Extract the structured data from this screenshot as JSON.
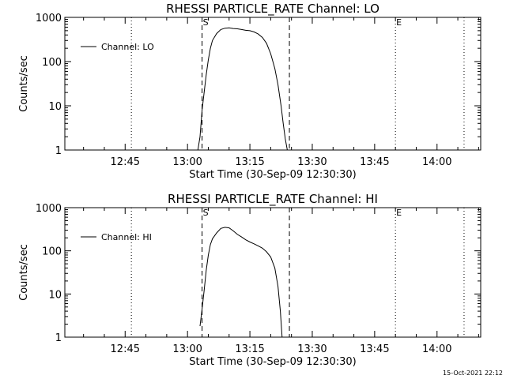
{
  "footer_timestamp": "15-Oct-2021 22:12",
  "chart_data": [
    {
      "type": "line",
      "title": "RHESSI PARTICLE_RATE Channel: LO",
      "xlabel": "Start Time (30-Sep-09 12:30:30)",
      "ylabel": "Counts/sec",
      "y_scale": "log",
      "ylim": [
        1,
        1000
      ],
      "y_ticks": [
        1,
        10,
        100,
        1000
      ],
      "y_tick_labels": [
        "1",
        "10",
        "100",
        "1000"
      ],
      "xlim": [
        "12:30:30",
        "14:10:30"
      ],
      "x_ticks": [
        "12:45",
        "13:00",
        "13:15",
        "13:30",
        "13:45",
        "14:00"
      ],
      "grid": false,
      "legend": "top-left",
      "series": [
        {
          "name": "Channel: LO",
          "points": [
            [
              "13:02:30",
              1.0
            ],
            [
              "13:03:00",
              2.0
            ],
            [
              "13:03:30",
              8.0
            ],
            [
              "13:04:00",
              20.0
            ],
            [
              "13:04:30",
              50.0
            ],
            [
              "13:05:00",
              110.0
            ],
            [
              "13:05:30",
              200.0
            ],
            [
              "13:06:00",
              300.0
            ],
            [
              "13:07:00",
              430.0
            ],
            [
              "13:08:00",
              530.0
            ],
            [
              "13:09:00",
              570.0
            ],
            [
              "13:10:00",
              580.0
            ],
            [
              "13:11:00",
              560.0
            ],
            [
              "13:12:00",
              550.0
            ],
            [
              "13:13:00",
              530.0
            ],
            [
              "13:14:00",
              510.0
            ],
            [
              "13:15:00",
              500.0
            ],
            [
              "13:16:00",
              470.0
            ],
            [
              "13:17:00",
              420.0
            ],
            [
              "13:18:00",
              350.0
            ],
            [
              "13:19:00",
              260.0
            ],
            [
              "13:20:00",
              150.0
            ],
            [
              "13:21:00",
              70.0
            ],
            [
              "13:21:45",
              30.0
            ],
            [
              "13:22:30",
              10.0
            ],
            [
              "13:23:00",
              4.0
            ],
            [
              "13:23:30",
              1.8
            ],
            [
              "13:24:00",
              1.0
            ]
          ]
        }
      ],
      "vlines": [
        {
          "x": "12:46:30",
          "style": "dotted"
        },
        {
          "x": "13:03:30",
          "style": "dashed",
          "label": "S"
        },
        {
          "x": "13:24:30",
          "style": "dashed"
        },
        {
          "x": "13:50:00",
          "style": "dotted",
          "label": "E"
        },
        {
          "x": "14:06:30",
          "style": "dotted"
        }
      ]
    },
    {
      "type": "line",
      "title": "RHESSI PARTICLE_RATE Channel: HI",
      "xlabel": "Start Time (30-Sep-09 12:30:30)",
      "ylabel": "Counts/sec",
      "y_scale": "log",
      "ylim": [
        1,
        1000
      ],
      "y_ticks": [
        1,
        10,
        100,
        1000
      ],
      "y_tick_labels": [
        "1",
        "10",
        "100",
        "1000"
      ],
      "xlim": [
        "12:30:30",
        "14:10:30"
      ],
      "x_ticks": [
        "12:45",
        "13:00",
        "13:15",
        "13:30",
        "13:45",
        "14:00"
      ],
      "grid": false,
      "legend": "top-left",
      "series": [
        {
          "name": "Channel: HI",
          "points": [
            [
              "13:03:00",
              1.8
            ],
            [
              "13:03:30",
              4.5
            ],
            [
              "13:04:00",
              12.0
            ],
            [
              "13:04:30",
              35.0
            ],
            [
              "13:05:00",
              80.0
            ],
            [
              "13:05:30",
              140.0
            ],
            [
              "13:06:00",
              190.0
            ],
            [
              "13:07:00",
              260.0
            ],
            [
              "13:08:00",
              330.0
            ],
            [
              "13:09:00",
              350.0
            ],
            [
              "13:10:00",
              340.0
            ],
            [
              "13:11:00",
              290.0
            ],
            [
              "13:12:00",
              240.0
            ],
            [
              "13:13:00",
              210.0
            ],
            [
              "13:14:00",
              180.0
            ],
            [
              "13:15:00",
              160.0
            ],
            [
              "13:16:00",
              145.0
            ],
            [
              "13:17:00",
              130.0
            ],
            [
              "13:18:00",
              115.0
            ],
            [
              "13:19:00",
              95.0
            ],
            [
              "13:20:00",
              72.0
            ],
            [
              "13:21:00",
              40.0
            ],
            [
              "13:21:45",
              15.0
            ],
            [
              "13:22:20",
              4.0
            ],
            [
              "13:22:45",
              1.0
            ]
          ]
        }
      ],
      "vlines": [
        {
          "x": "12:46:30",
          "style": "dotted"
        },
        {
          "x": "13:03:30",
          "style": "dashed",
          "label": "S"
        },
        {
          "x": "13:24:30",
          "style": "dashed"
        },
        {
          "x": "13:50:00",
          "style": "dotted",
          "label": "E"
        },
        {
          "x": "14:06:30",
          "style": "dotted"
        }
      ]
    }
  ]
}
